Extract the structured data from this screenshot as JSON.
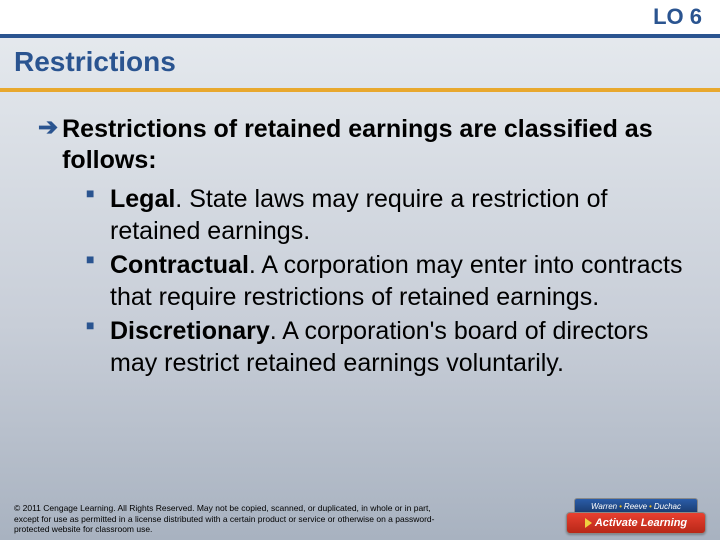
{
  "header": {
    "lo": "LO 6"
  },
  "title": "Restrictions",
  "intro": "Restrictions of retained earnings are classified as follows:",
  "bullets": [
    {
      "label": "Legal",
      "text": ". State laws may require a restriction of retained earnings."
    },
    {
      "label": "Contractual",
      "text": ". A corporation may enter into contracts that require restrictions of retained earnings."
    },
    {
      "label": "Discretionary",
      "text": ". A corporation's board of directors may restrict retained earnings voluntarily."
    }
  ],
  "footer": {
    "copyright": "© 2011 Cengage Learning. All Rights Reserved. May not be copied, scanned, or duplicated, in whole or in part, except for use as permitted in a license distributed with a certain product or service or otherwise on a password-protected website for classroom use.",
    "badge": {
      "authors": "Warren • Reeve • Duchac",
      "cta": "Activate Learning"
    }
  },
  "colors": {
    "blue": "#2a5490",
    "gold": "#e8a82e"
  }
}
